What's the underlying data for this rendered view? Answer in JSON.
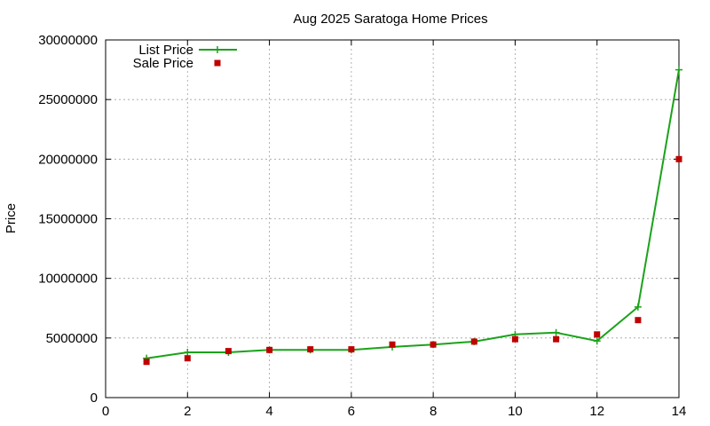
{
  "chart_data": {
    "type": "line",
    "title": "Aug 2025 Saratoga Home Prices",
    "xlabel": "",
    "ylabel": "Price",
    "xlim": [
      0,
      14
    ],
    "ylim": [
      0,
      30000000
    ],
    "xticks": [
      0,
      2,
      4,
      6,
      8,
      10,
      12,
      14
    ],
    "yticks": [
      0,
      5000000,
      10000000,
      15000000,
      20000000,
      25000000,
      30000000
    ],
    "xtick_labels": [
      "0",
      "2",
      "4",
      "6",
      "8",
      "10",
      "12",
      "14"
    ],
    "ytick_labels": [
      "0",
      "5000000",
      "10000000",
      "15000000",
      "20000000",
      "25000000",
      "30000000"
    ],
    "grid": true,
    "legend_position": "top-left",
    "series": [
      {
        "name": "List Price",
        "style": "line-with-plus",
        "color": "#1aa31a",
        "x": [
          1,
          2,
          3,
          4,
          5,
          6,
          7,
          8,
          9,
          10,
          11,
          12,
          13,
          14
        ],
        "y": [
          3300000,
          3800000,
          3800000,
          4000000,
          4000000,
          4000000,
          4250000,
          4450000,
          4700000,
          5300000,
          5450000,
          4750000,
          7600000,
          27500000
        ]
      },
      {
        "name": "Sale Price",
        "style": "square-markers",
        "color": "#c00000",
        "x": [
          1,
          2,
          3,
          4,
          5,
          6,
          7,
          8,
          9,
          10,
          11,
          12,
          13,
          14
        ],
        "y": [
          3000000,
          3300000,
          3900000,
          4000000,
          4050000,
          4050000,
          4450000,
          4450000,
          4700000,
          4900000,
          4900000,
          5300000,
          6500000,
          20000000
        ]
      }
    ]
  }
}
